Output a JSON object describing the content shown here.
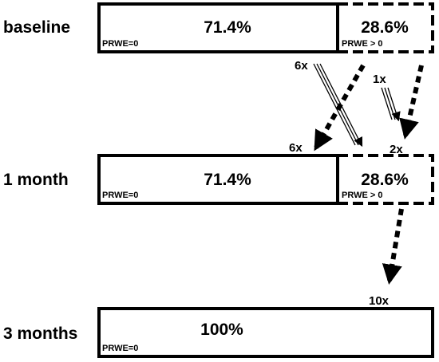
{
  "rows": [
    {
      "label": "baseline",
      "segments": [
        {
          "percent": "71.4%",
          "caption": "PRWE=0",
          "style": "solid"
        },
        {
          "percent": "28.6%",
          "caption": "PRWE > 0",
          "style": "dashed"
        }
      ]
    },
    {
      "label": "1 month",
      "segments": [
        {
          "percent": "71.4%",
          "caption": "PRWE=0",
          "style": "solid"
        },
        {
          "percent": "28.6%",
          "caption": "PRWE > 0",
          "style": "dashed"
        }
      ]
    },
    {
      "label": "3 months",
      "segments": [
        {
          "percent": "100%",
          "caption": "PRWE=0",
          "style": "solid"
        }
      ]
    }
  ],
  "transitions": [
    {
      "label_start": "6x",
      "label_end": "6x",
      "style": "dotted",
      "from": "baseline PRWE > 0",
      "to": "1 month PRWE=0"
    },
    {
      "label_start": "6x",
      "style": "triple",
      "from": "baseline PRWE=0",
      "to": "1 month PRWE > 0"
    },
    {
      "label_start": "1x",
      "style": "triple",
      "from": "baseline PRWE > 0",
      "to": "1 month PRWE > 0"
    },
    {
      "label_end": "2x",
      "style": "dotted",
      "from": "baseline PRWE > 0",
      "to": "1 month PRWE > 0"
    },
    {
      "label_end": "10x",
      "style": "dotted",
      "from": "1 month PRWE > 0",
      "to": "3 months PRWE=0"
    }
  ]
}
